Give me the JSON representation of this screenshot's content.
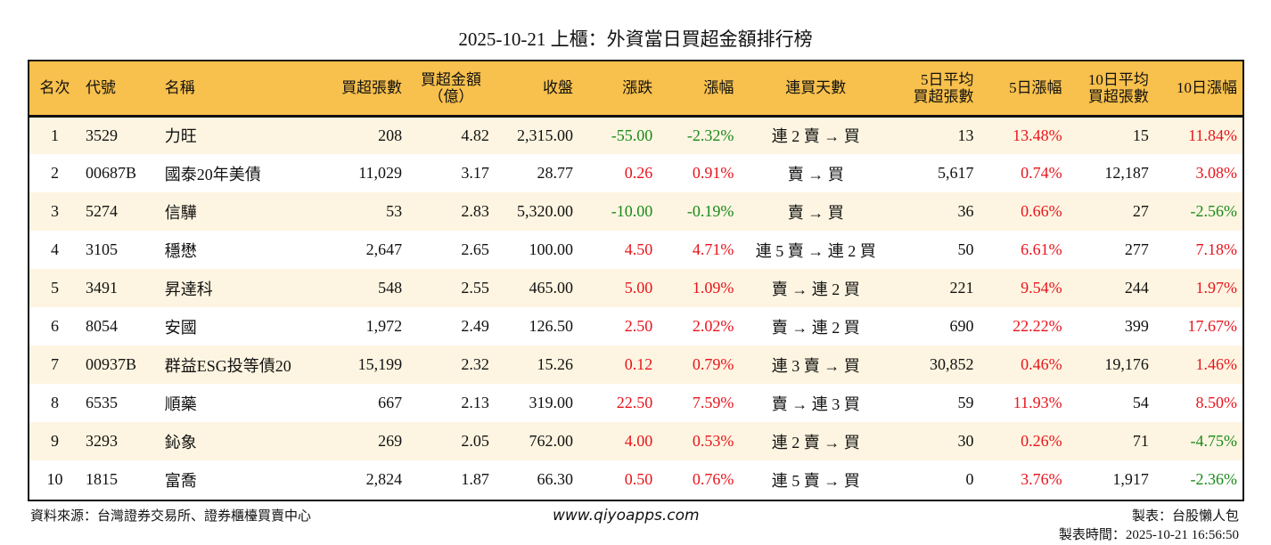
{
  "title": "2025-10-21 上櫃：外資當日買超金額排行榜",
  "headers": [
    "名次",
    "代號",
    "名稱",
    "買超張數",
    "買超金額\n（億）",
    "收盤",
    "漲跌",
    "漲幅",
    "連買天數",
    "5日平均\n買超張數",
    "5日漲幅",
    "10日平均\n買超張數",
    "10日漲幅"
  ],
  "rows": [
    [
      "1",
      "3529",
      "力旺",
      "208",
      "4.82",
      "2,315.00",
      "-55.00",
      "-2.32%",
      "連 2 賣 → 買",
      "13",
      "13.48%",
      "15",
      "11.84%"
    ],
    [
      "2",
      "00687B",
      "國泰20年美債",
      "11,029",
      "3.17",
      "28.77",
      "0.26",
      "0.91%",
      "賣 → 買",
      "5,617",
      "0.74%",
      "12,187",
      "3.08%"
    ],
    [
      "3",
      "5274",
      "信驊",
      "53",
      "2.83",
      "5,320.00",
      "-10.00",
      "-0.19%",
      "賣 → 買",
      "36",
      "0.66%",
      "27",
      "-2.56%"
    ],
    [
      "4",
      "3105",
      "穩懋",
      "2,647",
      "2.65",
      "100.00",
      "4.50",
      "4.71%",
      "連 5 賣 → 連 2 買",
      "50",
      "6.61%",
      "277",
      "7.18%"
    ],
    [
      "5",
      "3491",
      "昇達科",
      "548",
      "2.55",
      "465.00",
      "5.00",
      "1.09%",
      "賣 → 連 2 買",
      "221",
      "9.54%",
      "244",
      "1.97%"
    ],
    [
      "6",
      "8054",
      "安國",
      "1,972",
      "2.49",
      "126.50",
      "2.50",
      "2.02%",
      "賣 → 連 2 買",
      "690",
      "22.22%",
      "399",
      "17.67%"
    ],
    [
      "7",
      "00937B",
      "群益ESG投等債20",
      "15,199",
      "2.32",
      "15.26",
      "0.12",
      "0.79%",
      "連 3 賣 → 買",
      "30,852",
      "0.46%",
      "19,176",
      "1.46%"
    ],
    [
      "8",
      "6535",
      "順藥",
      "667",
      "2.13",
      "319.00",
      "22.50",
      "7.59%",
      "賣 → 連 3 買",
      "59",
      "11.93%",
      "54",
      "8.50%"
    ],
    [
      "9",
      "3293",
      "鈊象",
      "269",
      "2.05",
      "762.00",
      "4.00",
      "0.53%",
      "連 2 賣 → 買",
      "30",
      "0.26%",
      "71",
      "-4.75%"
    ],
    [
      "10",
      "1815",
      "富喬",
      "2,824",
      "1.87",
      "66.30",
      "0.50",
      "0.76%",
      "連 5 賣 → 買",
      "0",
      "3.76%",
      "1,917",
      "-2.36%"
    ]
  ],
  "colors": {
    "header": "#f8c04c",
    "row_alt": "#fdf5e1",
    "up": "#e8141c",
    "down": "#1a8a1a"
  },
  "footer": {
    "source": "資料來源：台灣證券交易所、證券櫃檯買賣中心",
    "site": "www.qiyoapps.com",
    "author": "製表：台股懶人包",
    "time": "製表時間：2025-10-21 16:56:50"
  }
}
